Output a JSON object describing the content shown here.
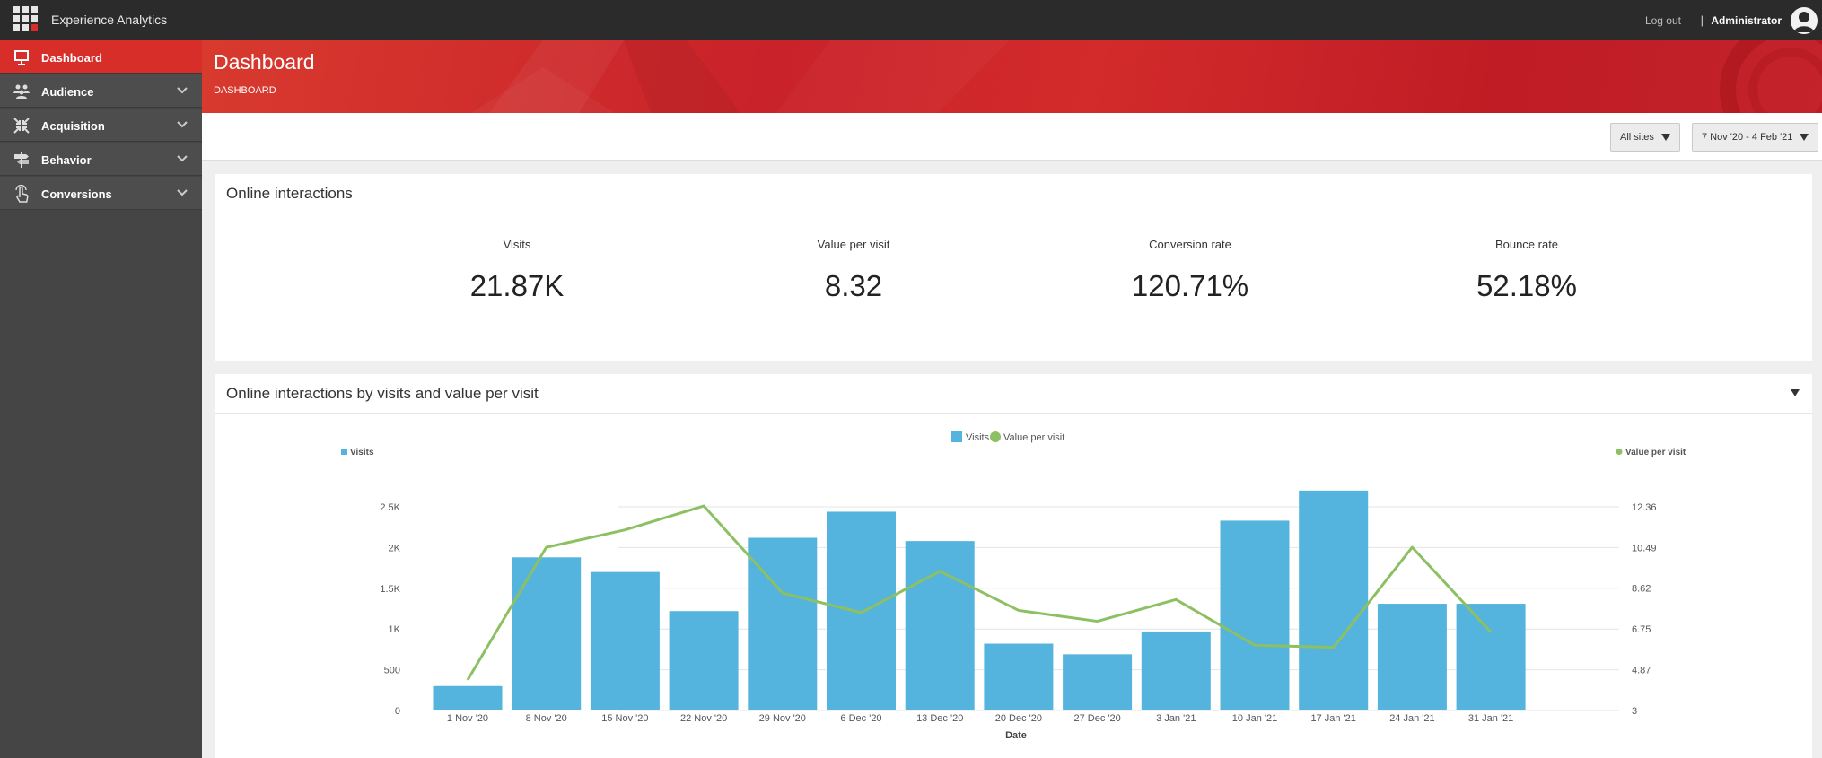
{
  "app": {
    "title": "Experience Analytics"
  },
  "topbar": {
    "logout_label": "Log out",
    "separator": "|",
    "user_name": "Administrator"
  },
  "sidebar": {
    "items": [
      {
        "label": "Dashboard",
        "icon": "presentation-icon",
        "active": true
      },
      {
        "label": "Audience",
        "icon": "people-icon",
        "active": false
      },
      {
        "label": "Acquisition",
        "icon": "arrows-in-icon",
        "active": false
      },
      {
        "label": "Behavior",
        "icon": "signpost-icon",
        "active": false
      },
      {
        "label": "Conversions",
        "icon": "touch-icon",
        "active": false
      }
    ]
  },
  "header": {
    "title": "Dashboard",
    "breadcrumb": "DASHBOARD"
  },
  "filters": {
    "sites": "All sites",
    "date_range": "7 Nov '20 - 4 Feb '21"
  },
  "kpi_panel": {
    "title": "Online interactions",
    "kpis": [
      {
        "label": "Visits",
        "value": "21.87K"
      },
      {
        "label": "Value per visit",
        "value": "8.32"
      },
      {
        "label": "Conversion rate",
        "value": "120.71%"
      },
      {
        "label": "Bounce rate",
        "value": "52.18%"
      }
    ]
  },
  "chart_panel": {
    "title": "Online interactions by visits and value per visit"
  },
  "colors": {
    "accent": "#d82e2a",
    "bar": "#55b4dd",
    "line": "#8cc063",
    "sidebar": "#454545",
    "topbar": "#2b2b2b"
  },
  "chart_data": {
    "type": "bar",
    "categories": [
      "1 Nov '20",
      "8 Nov '20",
      "15 Nov '20",
      "22 Nov '20",
      "29 Nov '20",
      "6 Dec '20",
      "13 Dec '20",
      "20 Dec '20",
      "27 Dec '20",
      "3 Jan '21",
      "10 Jan '21",
      "17 Jan '21",
      "24 Jan '21",
      "31 Jan '21"
    ],
    "series": [
      {
        "name": "Visits",
        "type": "bar",
        "axis": "left",
        "values": [
          300,
          1880,
          1700,
          1220,
          2120,
          2440,
          2080,
          820,
          690,
          970,
          2330,
          2700,
          1310,
          1310
        ]
      },
      {
        "name": "Value per visit",
        "type": "line",
        "axis": "right",
        "values": [
          4.4,
          10.5,
          11.3,
          12.4,
          8.4,
          7.5,
          9.4,
          7.6,
          7.1,
          8.1,
          6.0,
          5.9,
          10.5,
          6.6
        ]
      }
    ],
    "xlabel": "Date",
    "ylabel_left": "Visits",
    "ylabel_right": "Value per visit",
    "y_left": {
      "ticks": [
        0,
        500,
        1000,
        1500,
        2000,
        2500
      ],
      "tick_labels": [
        "0",
        "500",
        "1K",
        "1.5K",
        "2K",
        "2.5K"
      ],
      "range": [
        0,
        2500
      ]
    },
    "y_right": {
      "ticks": [
        3,
        4.87,
        6.75,
        8.62,
        10.49,
        12.36
      ],
      "tick_labels": [
        "3",
        "4.87",
        "6.75",
        "8.62",
        "10.49",
        "12.36"
      ],
      "range": [
        3,
        12.36
      ]
    },
    "legend": {
      "position": "top-center",
      "entries": [
        "Visits",
        "Value per visit"
      ]
    },
    "grid": true
  }
}
